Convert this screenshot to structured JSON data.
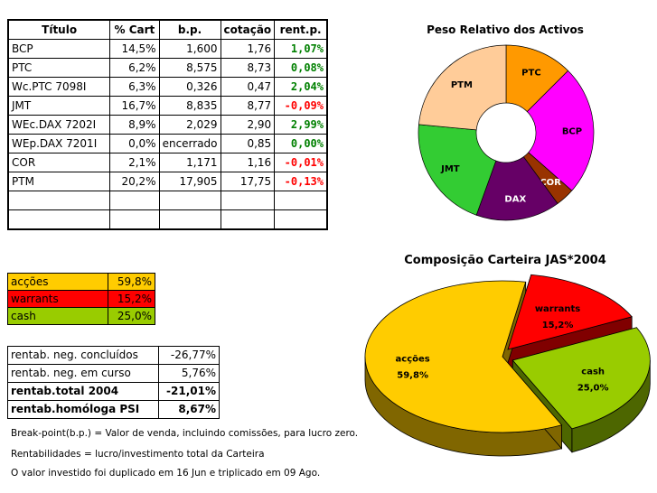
{
  "portfolio_table": {
    "headers": [
      "Título",
      "% Cart",
      "b.p.",
      "cotação",
      "rent.p."
    ],
    "rows": [
      {
        "titulo": "BCP",
        "cart": "14,5%",
        "bp": "1,600",
        "cotacao": "1,76",
        "rent": "1,07%",
        "rent_color": "#008000"
      },
      {
        "titulo": "PTC",
        "cart": "6,2%",
        "bp": "8,575",
        "cotacao": "8,73",
        "rent": "0,08%",
        "rent_color": "#008000"
      },
      {
        "titulo": "Wc.PTC 7098I",
        "cart": "6,3%",
        "bp": "0,326",
        "cotacao": "0,47",
        "rent": "2,04%",
        "rent_color": "#008000"
      },
      {
        "titulo": "JMT",
        "cart": "16,7%",
        "bp": "8,835",
        "cotacao": "8,77",
        "rent": "-0,09%",
        "rent_color": "#ff0000"
      },
      {
        "titulo": "WEc.DAX 7202I",
        "cart": "8,9%",
        "bp": "2,029",
        "cotacao": "2,90",
        "rent": "2,99%",
        "rent_color": "#008000"
      },
      {
        "titulo": "WEp.DAX 7201I",
        "cart": "0,0%",
        "bp": "encerrado",
        "cotacao": "0,85",
        "rent": "0,00%",
        "rent_color": "#008000"
      },
      {
        "titulo": "COR",
        "cart": "2,1%",
        "bp": "1,171",
        "cotacao": "1,16",
        "rent": "-0,01%",
        "rent_color": "#ff0000"
      },
      {
        "titulo": "PTM",
        "cart": "20,2%",
        "bp": "17,905",
        "cotacao": "17,75",
        "rent": "-0,13%",
        "rent_color": "#ff0000"
      },
      {
        "titulo": "",
        "cart": "",
        "bp": "",
        "cotacao": "",
        "rent": "",
        "rent_color": "#000000"
      },
      {
        "titulo": "",
        "cart": "",
        "bp": "",
        "cotacao": "",
        "rent": "",
        "rent_color": "#000000"
      }
    ]
  },
  "allocation_table": [
    {
      "label": "acções",
      "value": "59,8%",
      "bg": "#ffcc00",
      "fg": "#000000"
    },
    {
      "label": "warrants",
      "value": "15,2%",
      "bg": "#ff0000",
      "fg": "#000000"
    },
    {
      "label": "cash",
      "value": "25,0%",
      "bg": "#99cc00",
      "fg": "#000000"
    }
  ],
  "returns_table": [
    {
      "label": "rentab. neg. concluídos",
      "value": "-26,77%",
      "bold": false
    },
    {
      "label": "rentab. neg. em curso",
      "value": "5,76%",
      "bold": false
    },
    {
      "label": "rentab.total 2004",
      "value": "-21,01%",
      "bold": true
    },
    {
      "label": "rentab.homóloga PSI",
      "value": "8,67%",
      "bold": true
    }
  ],
  "notes": {
    "note1": "Break-point(b.p.) = Valor de venda, incluindo comissões, para lucro zero.",
    "note2": "Rentabilidades = lucro/investimento total da Carteira",
    "note3": "O valor investido foi duplicado em 16 Jun e triplicado em 09 Ago."
  },
  "chart_data": [
    {
      "type": "pie",
      "variant": "doughnut",
      "title": "Peso Relativo dos Activos",
      "categories": [
        "PTC",
        "BCP",
        "COR",
        "DAX",
        "JMT",
        "PTM"
      ],
      "values": [
        12.5,
        24.0,
        3.5,
        15.5,
        21.0,
        23.5
      ],
      "colors": [
        "#ff9900",
        "#ff00ff",
        "#993300",
        "#660066",
        "#33cc33",
        "#ffcc99"
      ],
      "label_colors": [
        "#000000",
        "#000000",
        "#ffffff",
        "#ffffff",
        "#000000",
        "#000000"
      ]
    },
    {
      "type": "pie",
      "variant": "3d",
      "title": "Composição Carteira JAS*2004",
      "categories": [
        "warrants",
        "cash",
        "acções"
      ],
      "values": [
        15.2,
        25.0,
        59.8
      ],
      "data_labels": [
        "15,2%",
        "25,0%",
        "59,8%"
      ],
      "colors": [
        "#ff0000",
        "#99cc00",
        "#ffcc00"
      ],
      "side_colors": [
        "#800000",
        "#4d6600",
        "#806600"
      ]
    }
  ]
}
